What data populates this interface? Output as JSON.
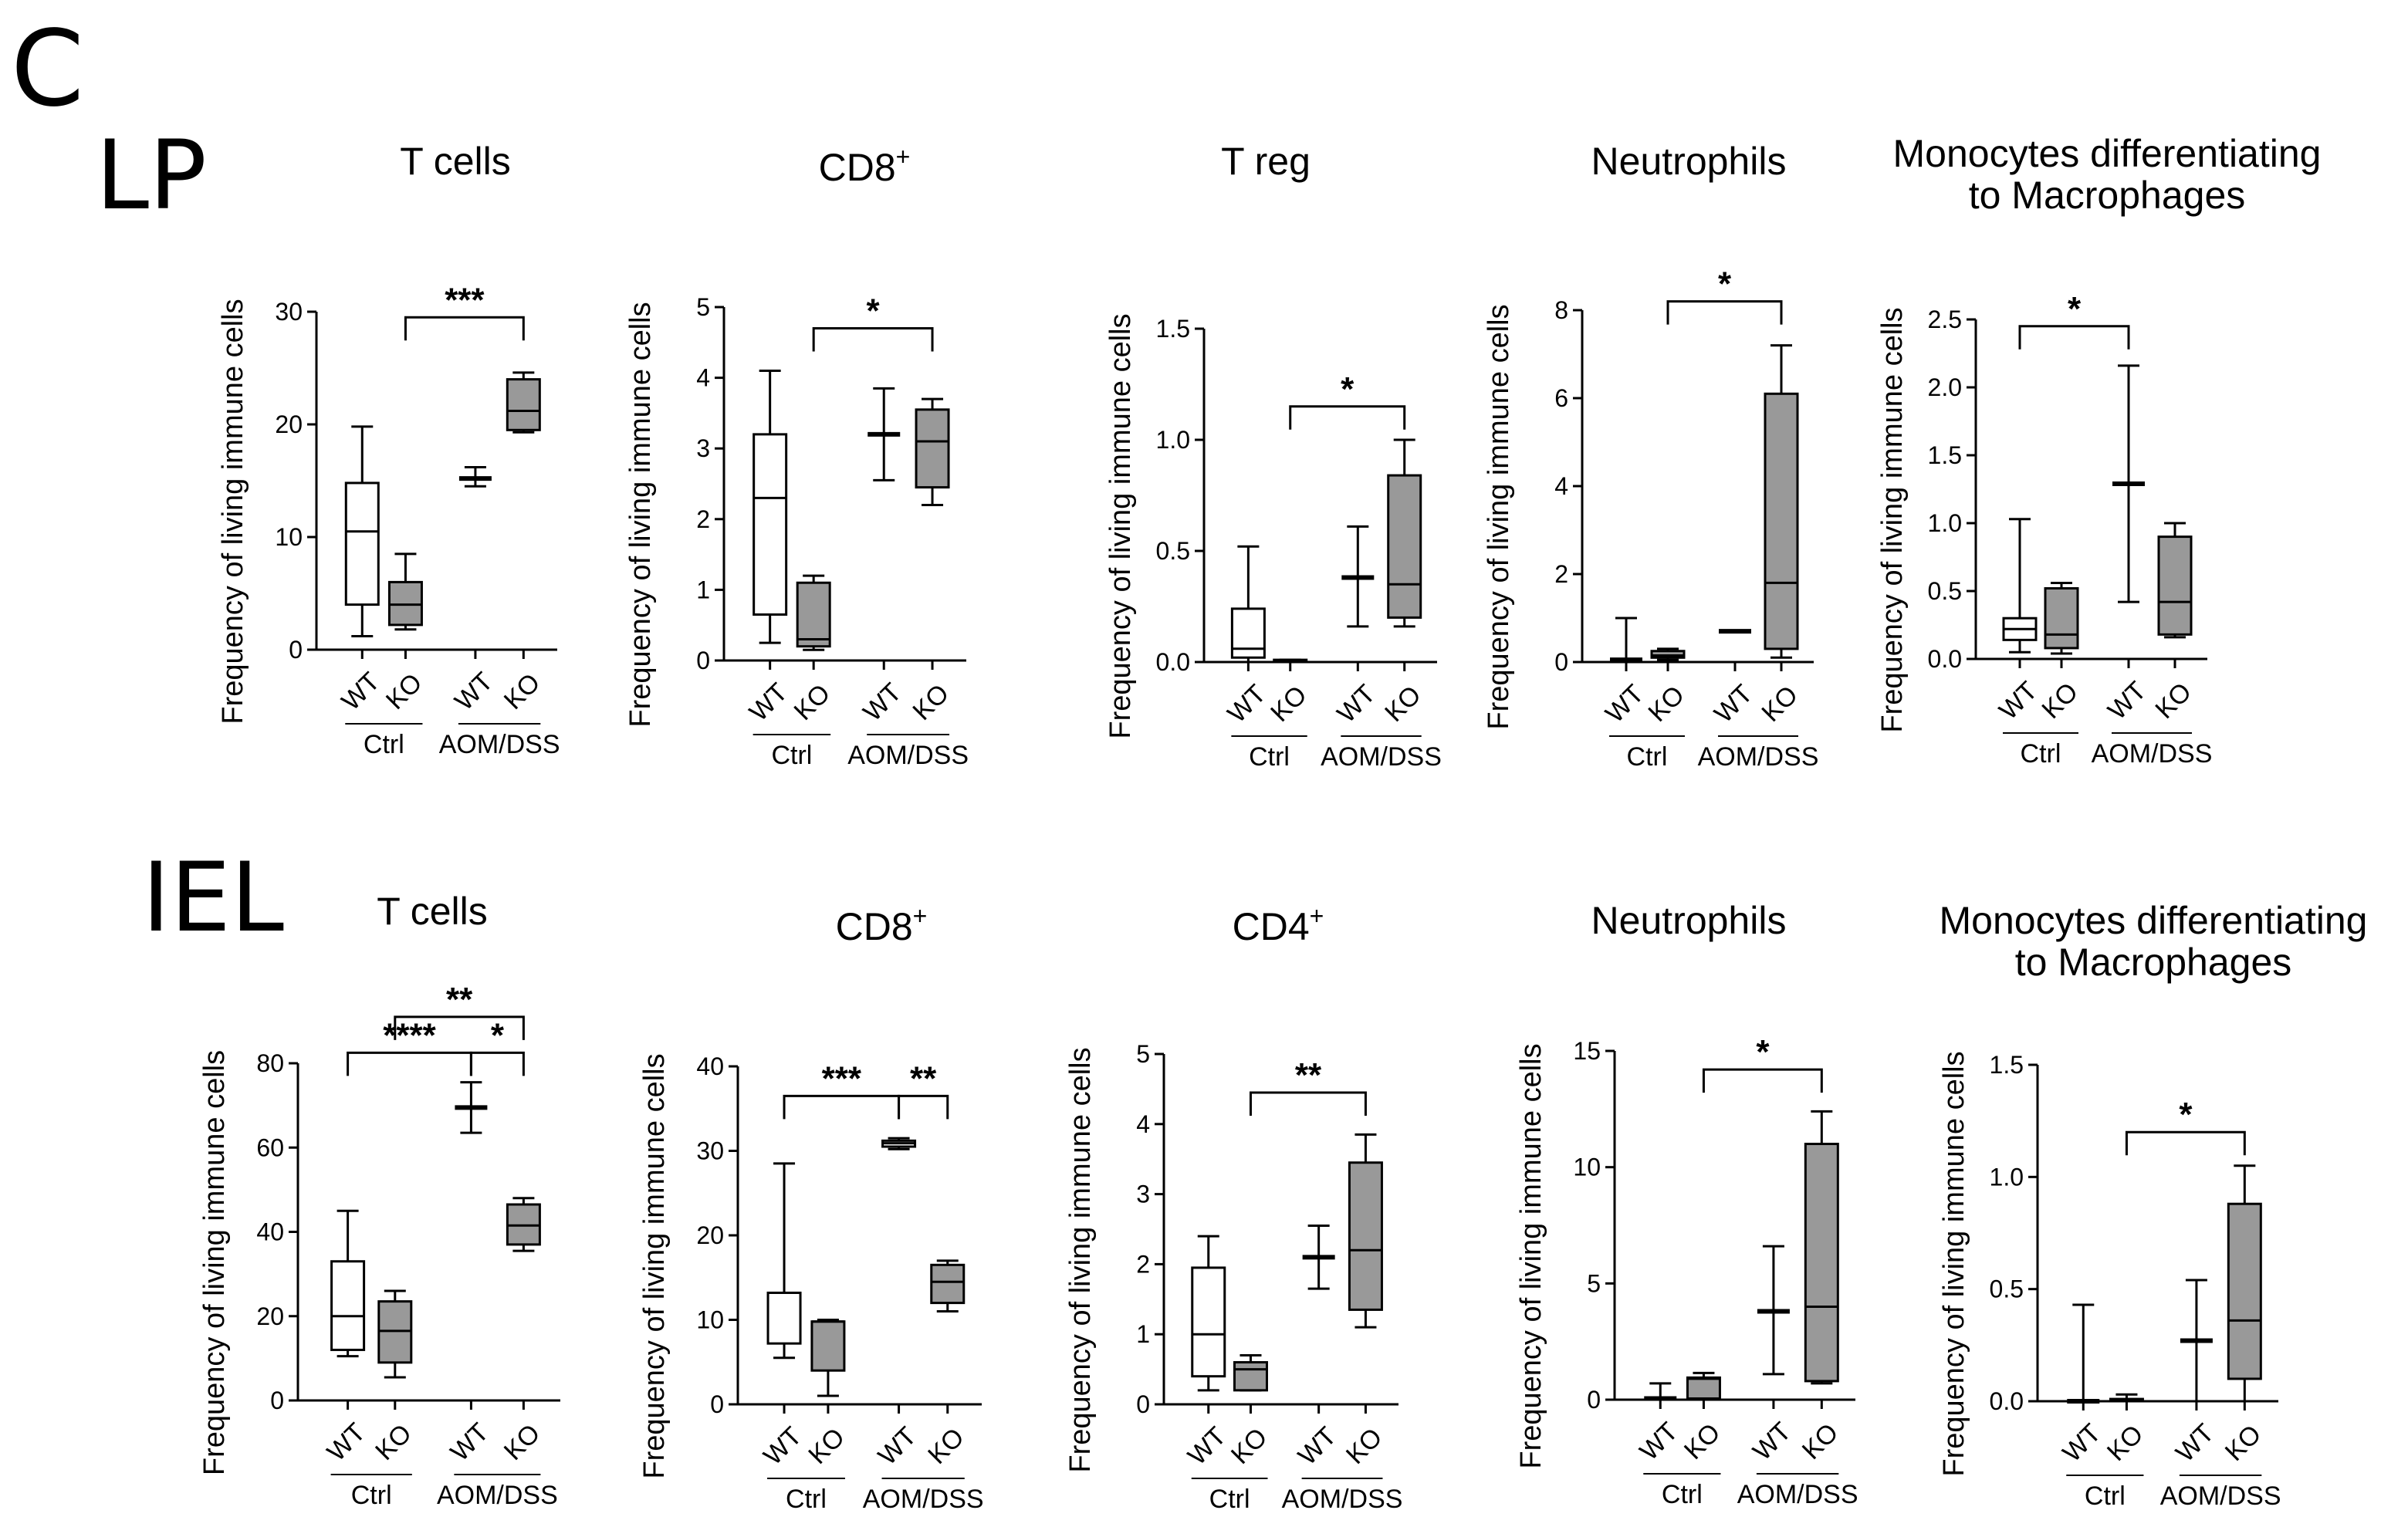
{
  "figure": {
    "panel_letter": "C",
    "rows": [
      "LP",
      "IEL"
    ],
    "colors": {
      "wt_box": "#ffffff",
      "ko_box": "#999999",
      "stroke": "#000000"
    }
  },
  "chart_data": [
    {
      "type": "box",
      "row": "LP",
      "title": "T cells",
      "superscript": "",
      "ylabel": "Frequency of living immune cells",
      "ylim": [
        0,
        30
      ],
      "yticks": [
        0,
        10,
        20,
        30
      ],
      "ytick_labels": [
        "0",
        "10",
        "20",
        "30"
      ],
      "categories": [
        "WT",
        "KO",
        "WT",
        "KO"
      ],
      "groups": [
        "Ctrl",
        "AOM/DSS"
      ],
      "series": [
        {
          "min": 1.2,
          "q1": 4.0,
          "median": 10.5,
          "q3": 14.8,
          "max": 19.8
        },
        {
          "min": 1.8,
          "q1": 2.2,
          "median": 4.0,
          "q3": 6.0,
          "max": 8.5
        },
        {
          "min": 14.5,
          "q1": 15.2,
          "median": 15.2,
          "q3": 15.2,
          "max": 16.2
        },
        {
          "min": 19.3,
          "q1": 19.5,
          "median": 21.2,
          "q3": 24.0,
          "max": 24.6
        }
      ],
      "significance": [
        {
          "from": 1,
          "to": 3,
          "label": "***",
          "y": 29.5
        }
      ]
    },
    {
      "type": "box",
      "row": "LP",
      "title": "CD8",
      "superscript": "+",
      "ylabel": "Frequency of living immune cells",
      "ylim": [
        0,
        5
      ],
      "yticks": [
        0,
        1,
        2,
        3,
        4,
        5
      ],
      "ytick_labels": [
        "0",
        "1",
        "2",
        "3",
        "4",
        "5"
      ],
      "categories": [
        "WT",
        "KO",
        "WT",
        "KO"
      ],
      "groups": [
        "Ctrl",
        "AOM/DSS"
      ],
      "series": [
        {
          "min": 0.25,
          "q1": 0.65,
          "median": 2.3,
          "q3": 3.2,
          "max": 4.1
        },
        {
          "min": 0.15,
          "q1": 0.2,
          "median": 0.3,
          "q3": 1.1,
          "max": 1.2
        },
        {
          "min": 2.55,
          "q1": 3.2,
          "median": 3.2,
          "q3": 3.2,
          "max": 3.85
        },
        {
          "min": 2.2,
          "q1": 2.45,
          "median": 3.1,
          "q3": 3.55,
          "max": 3.7
        }
      ],
      "significance": [
        {
          "from": 1,
          "to": 3,
          "label": "*",
          "y": 4.7
        }
      ]
    },
    {
      "type": "box",
      "row": "LP",
      "title": "T reg",
      "superscript": "",
      "ylabel": "Frequency of living immune cells",
      "ylim": [
        0,
        1.5
      ],
      "yticks": [
        0,
        0.5,
        1.0,
        1.5
      ],
      "ytick_labels": [
        "0.0",
        "0.5",
        "1.0",
        "1.5"
      ],
      "categories": [
        "WT",
        "KO",
        "WT",
        "KO"
      ],
      "groups": [
        "Ctrl",
        "AOM/DSS"
      ],
      "series": [
        {
          "min": 0.0,
          "q1": 0.02,
          "median": 0.06,
          "q3": 0.24,
          "max": 0.52
        },
        {
          "min": 0.0,
          "q1": 0.0,
          "median": 0.0,
          "q3": 0.01,
          "max": 0.01
        },
        {
          "min": 0.16,
          "q1": 0.38,
          "median": 0.38,
          "q3": 0.38,
          "max": 0.61
        },
        {
          "min": 0.16,
          "q1": 0.2,
          "median": 0.35,
          "q3": 0.84,
          "max": 1.0
        }
      ],
      "significance": [
        {
          "from": 1,
          "to": 3,
          "label": "*",
          "y": 1.15
        }
      ]
    },
    {
      "type": "box",
      "row": "LP",
      "title": "Neutrophils",
      "superscript": "",
      "ylabel": "Frequency of living immune cells",
      "ylim": [
        0,
        8
      ],
      "yticks": [
        0,
        2,
        4,
        6,
        8
      ],
      "ytick_labels": [
        "0",
        "2",
        "4",
        "6",
        "8"
      ],
      "categories": [
        "WT",
        "KO",
        "WT",
        "KO"
      ],
      "groups": [
        "Ctrl",
        "AOM/DSS"
      ],
      "series": [
        {
          "min": 0.0,
          "q1": 0.05,
          "median": 0.05,
          "q3": 0.05,
          "max": 1.0
        },
        {
          "min": 0.05,
          "q1": 0.1,
          "median": 0.15,
          "q3": 0.25,
          "max": 0.3
        },
        {
          "min": 0.7,
          "q1": 0.7,
          "median": 0.7,
          "q3": 0.7,
          "max": 0.7
        },
        {
          "min": 0.1,
          "q1": 0.3,
          "median": 1.8,
          "q3": 6.1,
          "max": 7.2
        }
      ],
      "significance": [
        {
          "from": 1,
          "to": 3,
          "label": "*",
          "y": 8.2
        }
      ]
    },
    {
      "type": "box",
      "row": "LP",
      "title": "Monocytes differentiating",
      "title2": "to Macrophages",
      "superscript": "",
      "ylabel": "Frequency of living immune cells",
      "ylim": [
        0,
        2.5
      ],
      "yticks": [
        0,
        0.5,
        1.0,
        1.5,
        2.0,
        2.5
      ],
      "ytick_labels": [
        "0.0",
        "0.5",
        "1.0",
        "1.5",
        "2.0",
        "2.5"
      ],
      "categories": [
        "WT",
        "KO",
        "WT",
        "KO"
      ],
      "groups": [
        "Ctrl",
        "AOM/DSS"
      ],
      "series": [
        {
          "min": 0.05,
          "q1": 0.14,
          "median": 0.22,
          "q3": 0.3,
          "max": 1.03
        },
        {
          "min": 0.04,
          "q1": 0.08,
          "median": 0.18,
          "q3": 0.52,
          "max": 0.56
        },
        {
          "min": 0.42,
          "q1": 1.29,
          "median": 1.29,
          "q3": 1.29,
          "max": 2.16
        },
        {
          "min": 0.16,
          "q1": 0.18,
          "median": 0.42,
          "q3": 0.9,
          "max": 1.0
        }
      ],
      "significance": [
        {
          "from": 0,
          "to": 2,
          "label": "*",
          "y": 2.45
        }
      ]
    },
    {
      "type": "box",
      "row": "IEL",
      "title": "T cells",
      "superscript": "",
      "ylabel": "Frequency of living immune cells",
      "ylim": [
        0,
        80
      ],
      "yticks": [
        0,
        20,
        40,
        60,
        80
      ],
      "ytick_labels": [
        "0",
        "20",
        "40",
        "60",
        "80"
      ],
      "categories": [
        "WT",
        "KO",
        "WT",
        "KO"
      ],
      "groups": [
        "Ctrl",
        "AOM/DSS"
      ],
      "series": [
        {
          "min": 10.5,
          "q1": 12.0,
          "median": 20.0,
          "q3": 33.0,
          "max": 45.0
        },
        {
          "min": 5.5,
          "q1": 9.0,
          "median": 16.5,
          "q3": 23.5,
          "max": 26.0
        },
        {
          "min": 63.5,
          "q1": 69.5,
          "median": 69.5,
          "q3": 69.5,
          "max": 75.5
        },
        {
          "min": 35.5,
          "q1": 37.0,
          "median": 41.5,
          "q3": 46.5,
          "max": 48.0
        }
      ],
      "significance": [
        {
          "from": 0,
          "to": 2,
          "label": "****",
          "y": 82.5
        },
        {
          "from": 2,
          "to": 3,
          "label": "*",
          "y": 82.5
        },
        {
          "from": 1,
          "to": 3,
          "label": "**",
          "y": 91
        }
      ]
    },
    {
      "type": "box",
      "row": "IEL",
      "title": "CD8",
      "superscript": "+",
      "ylabel": "Frequency of living immune cells",
      "ylim": [
        0,
        40
      ],
      "yticks": [
        0,
        10,
        20,
        30,
        40
      ],
      "ytick_labels": [
        "0",
        "10",
        "20",
        "30",
        "40"
      ],
      "categories": [
        "WT",
        "KO",
        "WT",
        "KO"
      ],
      "groups": [
        "Ctrl",
        "AOM/DSS"
      ],
      "series": [
        {
          "min": 5.5,
          "q1": 7.2,
          "median": 13.2,
          "q3": 13.2,
          "max": 28.5
        },
        {
          "min": 1.0,
          "q1": 4.0,
          "median": 9.8,
          "q3": 9.8,
          "max": 10.0
        },
        {
          "min": 30.2,
          "q1": 30.5,
          "median": 30.9,
          "q3": 31.2,
          "max": 31.5
        },
        {
          "min": 11.0,
          "q1": 12.0,
          "median": 14.5,
          "q3": 16.5,
          "max": 17.0
        }
      ],
      "significance": [
        {
          "from": 0,
          "to": 2,
          "label": "***",
          "y": 36.5
        },
        {
          "from": 2,
          "to": 3,
          "label": "**",
          "y": 36.5
        }
      ]
    },
    {
      "type": "box",
      "row": "IEL",
      "title": "CD4",
      "superscript": "+",
      "ylabel": "Frequency of living immune cells",
      "ylim": [
        0,
        5
      ],
      "yticks": [
        0,
        1,
        2,
        3,
        4,
        5
      ],
      "ytick_labels": [
        "0",
        "1",
        "2",
        "3",
        "4",
        "5"
      ],
      "categories": [
        "WT",
        "KO",
        "WT",
        "KO"
      ],
      "groups": [
        "Ctrl",
        "AOM/DSS"
      ],
      "series": [
        {
          "min": 0.2,
          "q1": 0.4,
          "median": 1.0,
          "q3": 1.95,
          "max": 2.4
        },
        {
          "min": 0.2,
          "q1": 0.2,
          "median": 0.5,
          "q3": 0.6,
          "max": 0.7
        },
        {
          "min": 1.65,
          "q1": 2.1,
          "median": 2.1,
          "q3": 2.1,
          "max": 2.55
        },
        {
          "min": 1.1,
          "q1": 1.35,
          "median": 2.2,
          "q3": 3.45,
          "max": 3.85
        }
      ],
      "significance": [
        {
          "from": 1,
          "to": 3,
          "label": "**",
          "y": 4.45
        }
      ]
    },
    {
      "type": "box",
      "row": "IEL",
      "title": "Neutrophils",
      "superscript": "",
      "ylabel": "Frequency of living immune cells",
      "ylim": [
        0,
        15
      ],
      "yticks": [
        0,
        5,
        10,
        15
      ],
      "ytick_labels": [
        "0",
        "5",
        "10",
        "15"
      ],
      "categories": [
        "WT",
        "KO",
        "WT",
        "KO"
      ],
      "groups": [
        "Ctrl",
        "AOM/DSS"
      ],
      "series": [
        {
          "min": 0.0,
          "q1": 0.05,
          "median": 0.05,
          "q3": 0.05,
          "max": 0.7
        },
        {
          "min": 0.0,
          "q1": 0.05,
          "median": 0.9,
          "q3": 0.95,
          "max": 1.15
        },
        {
          "min": 1.1,
          "q1": 3.8,
          "median": 3.8,
          "q3": 3.8,
          "max": 6.6
        },
        {
          "min": 0.7,
          "q1": 0.8,
          "median": 4.0,
          "q3": 11.0,
          "max": 12.4
        }
      ],
      "significance": [
        {
          "from": 1,
          "to": 3,
          "label": "*",
          "y": 14.2
        }
      ]
    },
    {
      "type": "box",
      "row": "IEL",
      "title": "Monocytes differentiating",
      "title2": "to Macrophages",
      "superscript": "",
      "ylabel": "Frequency of living immune cells",
      "ylim": [
        0,
        1.5
      ],
      "yticks": [
        0,
        0.5,
        1.0,
        1.5
      ],
      "ytick_labels": [
        "0.0",
        "0.5",
        "1.0",
        "1.5"
      ],
      "categories": [
        "WT",
        "KO",
        "WT",
        "KO"
      ],
      "groups": [
        "Ctrl",
        "AOM/DSS"
      ],
      "series": [
        {
          "min": 0.0,
          "q1": 0.0,
          "median": 0.0,
          "q3": 0.0,
          "max": 0.43
        },
        {
          "min": 0.0,
          "q1": 0.0,
          "median": 0.0,
          "q3": 0.01,
          "max": 0.03
        },
        {
          "min": 0.0,
          "q1": 0.27,
          "median": 0.27,
          "q3": 0.27,
          "max": 0.54
        },
        {
          "min": 0.0,
          "q1": 0.1,
          "median": 0.36,
          "q3": 0.88,
          "max": 1.05
        }
      ],
      "significance": [
        {
          "from": 1,
          "to": 3,
          "label": "*",
          "y": 1.2
        }
      ]
    }
  ]
}
